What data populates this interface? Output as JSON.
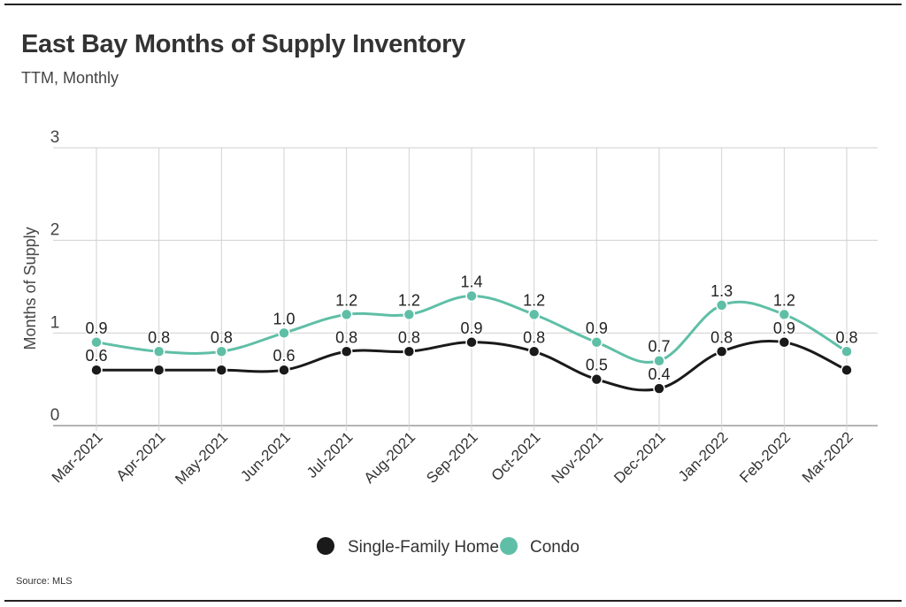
{
  "title": "East Bay Months of Supply Inventory",
  "subtitle": "TTM, Monthly",
  "source": "Source:  MLS",
  "chart_data": {
    "type": "line",
    "title": "East Bay Months of Supply Inventory",
    "subtitle": "TTM, Monthly",
    "xlabel": "",
    "ylabel": "Months of Supply",
    "ylim": [
      0,
      3
    ],
    "yticks": [
      0,
      1,
      2,
      3
    ],
    "grid": true,
    "legend_position": "bottom-center",
    "categories": [
      "Mar-2021",
      "Apr-2021",
      "May-2021",
      "Jun-2021",
      "Jul-2021",
      "Aug-2021",
      "Sep-2021",
      "Oct-2021",
      "Nov-2021",
      "Dec-2021",
      "Jan-2022",
      "Feb-2022",
      "Mar-2022"
    ],
    "series": [
      {
        "name": "Single-Family Home",
        "color": "#1a1a1a",
        "values": [
          0.6,
          0.6,
          0.6,
          0.6,
          0.8,
          0.8,
          0.9,
          0.8,
          0.5,
          0.4,
          0.8,
          0.9,
          0.6
        ],
        "labels": [
          "0.6",
          "",
          "",
          "0.6",
          "0.8",
          "0.8",
          "0.9",
          "0.8",
          "0.5",
          "0.4",
          "0.8",
          "0.9",
          ""
        ]
      },
      {
        "name": "Condo",
        "color": "#5fbfa6",
        "values": [
          0.9,
          0.8,
          0.8,
          1.0,
          1.2,
          1.2,
          1.4,
          1.2,
          0.9,
          0.7,
          1.3,
          1.2,
          0.8
        ],
        "labels": [
          "0.9",
          "0.8",
          "0.8",
          "1.0",
          "1.2",
          "1.2",
          "1.4",
          "1.2",
          "0.9",
          "0.7",
          "1.3",
          "1.2",
          "0.8"
        ]
      }
    ]
  }
}
